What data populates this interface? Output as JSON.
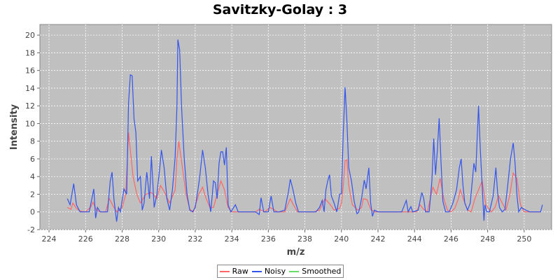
{
  "chart_data": {
    "type": "line",
    "title": "Savitzky-Golay : 3",
    "xlabel": "m/z",
    "ylabel": "Intensity",
    "xlim": [
      223.5,
      251.5
    ],
    "ylim": [
      -2,
      21.2
    ],
    "x_ticks": [
      224,
      226,
      228,
      230,
      232,
      234,
      236,
      238,
      240,
      242,
      244,
      246,
      248,
      250
    ],
    "y_ticks": [
      -2,
      0,
      2,
      4,
      6,
      8,
      10,
      12,
      14,
      16,
      18,
      20
    ],
    "grid": true,
    "legend_position": "bottom",
    "plot_background": "#c0c0c0",
    "series": [
      {
        "name": "Raw",
        "color": "#ff6666",
        "points": [
          [
            225.0,
            0.5
          ],
          [
            225.2,
            0.3
          ],
          [
            225.3,
            1.0
          ],
          [
            225.5,
            0.4
          ],
          [
            225.7,
            0.1
          ],
          [
            226.0,
            0.0
          ],
          [
            226.3,
            0.6
          ],
          [
            226.4,
            1.1
          ],
          [
            226.6,
            0.2
          ],
          [
            226.8,
            0.0
          ],
          [
            227.1,
            0.0
          ],
          [
            227.3,
            1.5
          ],
          [
            227.5,
            0.7
          ],
          [
            227.7,
            0.0
          ],
          [
            228.0,
            0.5
          ],
          [
            228.2,
            2.0
          ],
          [
            228.35,
            9.0
          ],
          [
            228.6,
            4.0
          ],
          [
            228.8,
            2.0
          ],
          [
            229.0,
            1.0
          ],
          [
            229.3,
            2.0
          ],
          [
            229.6,
            2.2
          ],
          [
            229.9,
            1.5
          ],
          [
            230.1,
            3.0
          ],
          [
            230.3,
            2.3
          ],
          [
            230.6,
            1.0
          ],
          [
            230.9,
            2.5
          ],
          [
            231.0,
            6.0
          ],
          [
            231.1,
            8.0
          ],
          [
            231.3,
            5.0
          ],
          [
            231.5,
            2.0
          ],
          [
            231.7,
            0.3
          ],
          [
            231.9,
            0.0
          ],
          [
            232.2,
            2.0
          ],
          [
            232.4,
            2.8
          ],
          [
            232.6,
            1.5
          ],
          [
            232.8,
            0.5
          ],
          [
            233.0,
            0.5
          ],
          [
            233.2,
            2.0
          ],
          [
            233.4,
            3.5
          ],
          [
            233.6,
            2.5
          ],
          [
            233.8,
            0.5
          ],
          [
            234.0,
            0.0
          ],
          [
            234.5,
            0.0
          ],
          [
            235.0,
            0.0
          ],
          [
            235.3,
            0.0
          ],
          [
            235.5,
            0.3
          ],
          [
            235.8,
            0.0
          ],
          [
            236.1,
            0.5
          ],
          [
            236.5,
            0.0
          ],
          [
            236.9,
            0.0
          ],
          [
            237.2,
            1.5
          ],
          [
            237.4,
            0.7
          ],
          [
            237.6,
            0.0
          ],
          [
            238.0,
            0.0
          ],
          [
            238.5,
            0.0
          ],
          [
            238.8,
            0.2
          ],
          [
            239.1,
            1.5
          ],
          [
            239.4,
            0.8
          ],
          [
            239.6,
            0.2
          ],
          [
            239.9,
            0.4
          ],
          [
            240.0,
            1.0
          ],
          [
            240.1,
            3.0
          ],
          [
            240.2,
            5.8
          ],
          [
            240.3,
            5.9
          ],
          [
            240.4,
            3.0
          ],
          [
            240.6,
            0.8
          ],
          [
            240.9,
            0.2
          ],
          [
            241.1,
            0.5
          ],
          [
            241.2,
            1.5
          ],
          [
            241.4,
            1.4
          ],
          [
            241.6,
            0.3
          ],
          [
            241.8,
            0.0
          ],
          [
            242.0,
            0.0
          ],
          [
            242.5,
            0.0
          ],
          [
            243.0,
            0.0
          ],
          [
            243.5,
            0.0
          ],
          [
            243.8,
            0.0
          ],
          [
            244.1,
            0.0
          ],
          [
            244.3,
            0.8
          ],
          [
            244.5,
            0.3
          ],
          [
            244.7,
            0.0
          ],
          [
            245.0,
            2.8
          ],
          [
            245.2,
            2.0
          ],
          [
            245.4,
            3.8
          ],
          [
            245.6,
            1.5
          ],
          [
            245.8,
            0.2
          ],
          [
            246.0,
            0.0
          ],
          [
            246.2,
            0.4
          ],
          [
            246.4,
            1.5
          ],
          [
            246.5,
            2.5
          ],
          [
            246.7,
            1.3
          ],
          [
            246.9,
            0.2
          ],
          [
            247.1,
            0.0
          ],
          [
            247.3,
            1.5
          ],
          [
            247.5,
            2.5
          ],
          [
            247.7,
            3.5
          ],
          [
            247.9,
            0.8
          ],
          [
            248.2,
            0.0
          ],
          [
            248.4,
            0.5
          ],
          [
            248.6,
            1.8
          ],
          [
            248.8,
            1.0
          ],
          [
            249.0,
            0.2
          ],
          [
            249.2,
            1.8
          ],
          [
            249.4,
            4.4
          ],
          [
            249.6,
            3.8
          ],
          [
            249.8,
            0.8
          ],
          [
            250.0,
            0.0
          ],
          [
            250.2,
            0.0
          ],
          [
            250.4,
            0.0
          ],
          [
            250.6,
            0.0
          ],
          [
            250.9,
            0.0
          ]
        ]
      },
      {
        "name": "Noisy",
        "color": "#3355ee",
        "points": [
          [
            225.0,
            1.5
          ],
          [
            225.15,
            0.8
          ],
          [
            225.35,
            3.2
          ],
          [
            225.5,
            0.8
          ],
          [
            225.7,
            0.0
          ],
          [
            226.0,
            0.0
          ],
          [
            226.2,
            0.0
          ],
          [
            226.45,
            2.6
          ],
          [
            226.55,
            -0.7
          ],
          [
            226.65,
            0.5
          ],
          [
            226.8,
            0.0
          ],
          [
            227.0,
            0.0
          ],
          [
            227.2,
            0.0
          ],
          [
            227.35,
            3.5
          ],
          [
            227.45,
            4.5
          ],
          [
            227.55,
            1.5
          ],
          [
            227.7,
            -1.1
          ],
          [
            227.8,
            0.5
          ],
          [
            227.9,
            0.0
          ],
          [
            228.1,
            2.6
          ],
          [
            228.25,
            2.0
          ],
          [
            228.35,
            12.3
          ],
          [
            228.45,
            15.5
          ],
          [
            228.55,
            15.4
          ],
          [
            228.65,
            10.5
          ],
          [
            228.75,
            9.0
          ],
          [
            228.85,
            3.5
          ],
          [
            229.0,
            4.0
          ],
          [
            229.1,
            0.2
          ],
          [
            229.2,
            1.0
          ],
          [
            229.35,
            4.5
          ],
          [
            229.5,
            1.5
          ],
          [
            229.6,
            6.3
          ],
          [
            229.75,
            0.5
          ],
          [
            229.9,
            2.0
          ],
          [
            230.05,
            4.8
          ],
          [
            230.15,
            7.0
          ],
          [
            230.3,
            5.0
          ],
          [
            230.45,
            1.5
          ],
          [
            230.6,
            0.2
          ],
          [
            230.75,
            2.5
          ],
          [
            230.9,
            6.2
          ],
          [
            231.0,
            12.0
          ],
          [
            231.05,
            19.5
          ],
          [
            231.15,
            18.3
          ],
          [
            231.25,
            12.0
          ],
          [
            231.4,
            6.0
          ],
          [
            231.55,
            2.0
          ],
          [
            231.7,
            0.2
          ],
          [
            231.85,
            0.0
          ],
          [
            232.0,
            0.5
          ],
          [
            232.15,
            2.5
          ],
          [
            232.25,
            4.0
          ],
          [
            232.4,
            7.0
          ],
          [
            232.55,
            5.0
          ],
          [
            232.7,
            2.0
          ],
          [
            232.85,
            0.0
          ],
          [
            233.0,
            3.5
          ],
          [
            233.1,
            3.3
          ],
          [
            233.2,
            1.5
          ],
          [
            233.3,
            5.5
          ],
          [
            233.4,
            6.8
          ],
          [
            233.5,
            6.8
          ],
          [
            233.6,
            5.3
          ],
          [
            233.7,
            7.3
          ],
          [
            233.8,
            0.8
          ],
          [
            233.95,
            0.0
          ],
          [
            234.2,
            0.8
          ],
          [
            234.35,
            0.0
          ],
          [
            234.6,
            0.0
          ],
          [
            235.0,
            0.0
          ],
          [
            235.3,
            0.0
          ],
          [
            235.5,
            -0.3
          ],
          [
            235.6,
            1.6
          ],
          [
            235.75,
            0.0
          ],
          [
            236.0,
            0.0
          ],
          [
            236.15,
            1.8
          ],
          [
            236.3,
            0.0
          ],
          [
            236.6,
            0.0
          ],
          [
            236.9,
            0.2
          ],
          [
            237.1,
            2.3
          ],
          [
            237.2,
            3.7
          ],
          [
            237.35,
            2.5
          ],
          [
            237.5,
            1.0
          ],
          [
            237.65,
            0.0
          ],
          [
            237.9,
            0.0
          ],
          [
            238.3,
            0.0
          ],
          [
            238.6,
            0.0
          ],
          [
            238.8,
            0.5
          ],
          [
            238.95,
            1.3
          ],
          [
            239.05,
            0.0
          ],
          [
            239.15,
            2.5
          ],
          [
            239.25,
            3.5
          ],
          [
            239.35,
            4.2
          ],
          [
            239.45,
            1.8
          ],
          [
            239.6,
            1.0
          ],
          [
            239.75,
            0.0
          ],
          [
            239.9,
            2.0
          ],
          [
            240.0,
            2.1
          ],
          [
            240.1,
            9.0
          ],
          [
            240.2,
            14.1
          ],
          [
            240.3,
            10.2
          ],
          [
            240.4,
            5.0
          ],
          [
            240.55,
            3.5
          ],
          [
            240.7,
            1.2
          ],
          [
            240.85,
            -0.2
          ],
          [
            240.95,
            0.0
          ],
          [
            241.1,
            1.5
          ],
          [
            241.25,
            3.6
          ],
          [
            241.35,
            2.6
          ],
          [
            241.5,
            5.0
          ],
          [
            241.6,
            1.0
          ],
          [
            241.7,
            -0.5
          ],
          [
            241.8,
            0.2
          ],
          [
            242.0,
            0.0
          ],
          [
            242.5,
            0.0
          ],
          [
            243.0,
            0.0
          ],
          [
            243.3,
            0.0
          ],
          [
            243.55,
            1.3
          ],
          [
            243.65,
            0.0
          ],
          [
            243.8,
            0.6
          ],
          [
            243.9,
            0.0
          ],
          [
            244.2,
            0.2
          ],
          [
            244.4,
            2.2
          ],
          [
            244.5,
            1.5
          ],
          [
            244.6,
            0.0
          ],
          [
            244.8,
            0.0
          ],
          [
            244.95,
            3.5
          ],
          [
            245.05,
            8.3
          ],
          [
            245.15,
            4.2
          ],
          [
            245.25,
            7.0
          ],
          [
            245.35,
            10.6
          ],
          [
            245.45,
            5.5
          ],
          [
            245.55,
            1.2
          ],
          [
            245.7,
            0.0
          ],
          [
            245.9,
            0.0
          ],
          [
            246.1,
            1.0
          ],
          [
            246.3,
            2.5
          ],
          [
            246.45,
            5.0
          ],
          [
            246.55,
            6.0
          ],
          [
            246.65,
            3.0
          ],
          [
            246.75,
            1.0
          ],
          [
            246.9,
            0.2
          ],
          [
            247.05,
            1.0
          ],
          [
            247.25,
            5.5
          ],
          [
            247.35,
            4.5
          ],
          [
            247.5,
            12.0
          ],
          [
            247.6,
            7.0
          ],
          [
            247.7,
            3.0
          ],
          [
            247.8,
            -1.0
          ],
          [
            247.85,
            0.8
          ],
          [
            247.95,
            0.0
          ],
          [
            248.1,
            0.0
          ],
          [
            248.3,
            1.8
          ],
          [
            248.45,
            5.0
          ],
          [
            248.55,
            2.0
          ],
          [
            248.65,
            0.5
          ],
          [
            248.8,
            0.0
          ],
          [
            248.95,
            0.3
          ],
          [
            249.1,
            3.0
          ],
          [
            249.25,
            6.0
          ],
          [
            249.4,
            7.8
          ],
          [
            249.5,
            5.5
          ],
          [
            249.6,
            2.0
          ],
          [
            249.7,
            0.0
          ],
          [
            249.85,
            0.5
          ],
          [
            250.0,
            0.3
          ],
          [
            250.3,
            0.0
          ],
          [
            250.5,
            0.0
          ],
          [
            250.75,
            0.0
          ],
          [
            250.9,
            0.0
          ],
          [
            251.0,
            0.8
          ]
        ]
      },
      {
        "name": "Smoothed",
        "color": "#66dd66",
        "points": []
      }
    ]
  }
}
